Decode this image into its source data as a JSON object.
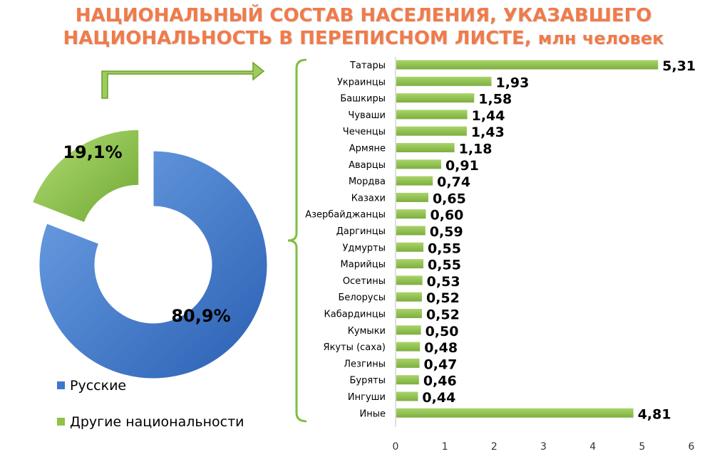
{
  "title": {
    "line1": "НАЦИОНАЛЬНЫЙ СОСТАВ НАСЕЛЕНИЯ, УКАЗАВШЕГО",
    "line2": "НАЦИОНАЛЬНОСТЬ В ПЕРЕПИСНОМ ЛИСТЕ,",
    "unit": "млн человек"
  },
  "colors": {
    "title": "#f07b4a",
    "blue": "#3d78cc",
    "green": "#8ec24a",
    "bar": "#93c257",
    "brace": "#7fbf3f"
  },
  "chart_data": [
    {
      "type": "pie",
      "variant": "donut",
      "slices": [
        {
          "name": "Русские",
          "value": 80.9,
          "label": "80,9%"
        },
        {
          "name": "Другие национальности",
          "value": 19.1,
          "label": "19,1%",
          "exploded": true
        }
      ],
      "legend": [
        "Русские",
        "Другие национальности"
      ]
    },
    {
      "type": "bar",
      "orientation": "horizontal",
      "title": "НАЦИОНАЛЬНЫЙ СОСТАВ НАСЕЛЕНИЯ, УКАЗАВШЕГО НАЦИОНАЛЬНОСТЬ В ПЕРЕПИСНОМ ЛИСТЕ, млн человек",
      "categories": [
        "Татары",
        "Украинцы",
        "Башкиры",
        "Чуваши",
        "Чеченцы",
        "Армяне",
        "Аварцы",
        "Мордва",
        "Казахи",
        "Азербайджанцы",
        "Даргинцы ",
        "Удмурты",
        "Марийцы",
        "Осетины",
        "Белорусы",
        "Кабардинцы",
        "Кумыки",
        "Якуты (саха)",
        "Лезгины",
        "Буряты",
        "Ингуши",
        "Иные"
      ],
      "values": [
        5.31,
        1.93,
        1.58,
        1.44,
        1.43,
        1.18,
        0.91,
        0.74,
        0.65,
        0.6,
        0.59,
        0.55,
        0.55,
        0.53,
        0.52,
        0.52,
        0.5,
        0.48,
        0.47,
        0.46,
        0.44,
        4.81
      ],
      "value_labels": [
        "5,31",
        "1,93",
        "1,58",
        "1,44",
        "1,43",
        "1,18",
        "0,91",
        "0,74",
        "0,65",
        "0,60",
        "0,59",
        "0,55",
        "0,55",
        "0,53",
        "0,52",
        "0,52",
        "0,50",
        "0,48",
        "0,47",
        "0,46",
        "0,44",
        "4,81"
      ],
      "xlim": [
        0,
        6
      ],
      "xticks": [
        "0",
        "1",
        "2",
        "3",
        "4",
        "5",
        "6"
      ],
      "grid": false
    }
  ]
}
